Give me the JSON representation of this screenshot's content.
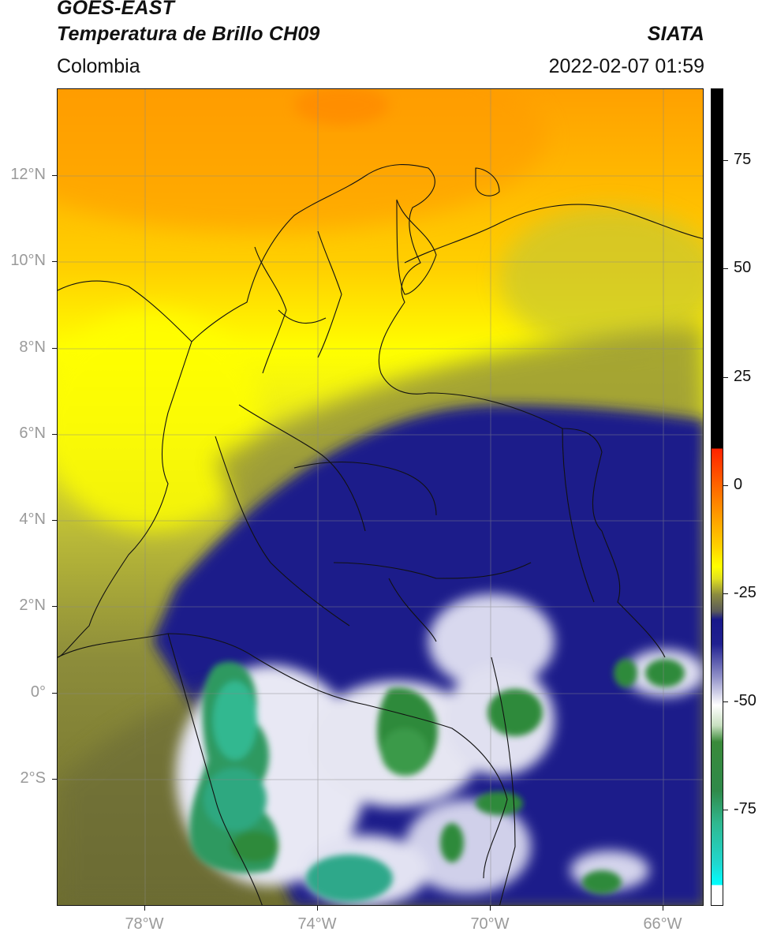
{
  "header": {
    "satellite": "GOES-EAST",
    "product": "Temperatura de Brillo CH09",
    "agency": "SIATA",
    "region": "Colombia",
    "datetime": "2022-02-07 01:59"
  },
  "map": {
    "lat_labels": [
      "12°N",
      "10°N",
      "8°N",
      "6°N",
      "4°N",
      "2°N",
      "0°",
      "2°S"
    ],
    "lon_labels": [
      "78°W",
      "74°W",
      "70°W",
      "66°W"
    ]
  },
  "colorbar": {
    "tick_labels": [
      "75",
      "50",
      "25",
      "0",
      "-25",
      "-50",
      "-75"
    ],
    "colors": {
      "warm": "#ff9900",
      "yellow": "#ffff00",
      "olive": "#8c8c32",
      "navy": "#1a1a8c",
      "white": "#f4f4f4",
      "green": "#2f8a3a",
      "teal": "#2fb89a"
    }
  }
}
